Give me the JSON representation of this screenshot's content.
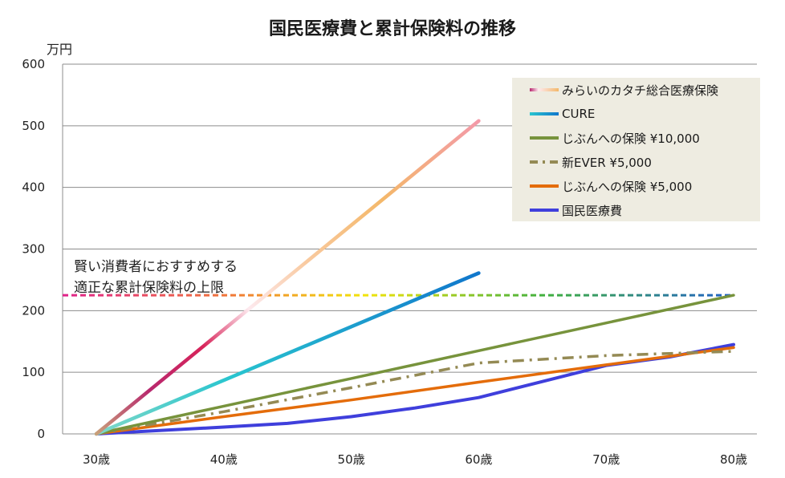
{
  "chart_data": {
    "type": "line",
    "title": "国民医療費と累計保険料の推移",
    "ylabel": "万円",
    "xlabel": "",
    "x": [
      30,
      40,
      50,
      60,
      70,
      80
    ],
    "x_tick_labels": [
      "30歳",
      "40歳",
      "50歳",
      "60歳",
      "70歳",
      "80歳"
    ],
    "ylim": [
      0,
      600
    ],
    "y_ticks": [
      "0",
      "100",
      "200",
      "300",
      "400",
      "500",
      "600"
    ],
    "grid": true,
    "legend_position": "top-right",
    "series": [
      {
        "name": "みらいのカタチ総合医療保険",
        "style": "gradient",
        "x": [
          30,
          60
        ],
        "values": [
          0,
          508
        ]
      },
      {
        "name": "CURE",
        "style": "gradient",
        "x": [
          30,
          60
        ],
        "values": [
          0,
          261
        ]
      },
      {
        "name": "じぶんへの保険 ¥10,000",
        "style": "solid",
        "color": "#77933c",
        "x": [
          30,
          40,
          50,
          60,
          70,
          80
        ],
        "values": [
          0,
          45,
          90,
          135,
          180,
          225
        ]
      },
      {
        "name": "新EVER ¥5,000",
        "style": "dashdot",
        "color": "#948a54",
        "x": [
          30,
          40,
          50,
          60,
          70,
          80
        ],
        "values": [
          0,
          36,
          75,
          115,
          127,
          134
        ]
      },
      {
        "name": "じぶんへの保険  ¥5,000",
        "style": "solid",
        "color": "#e46c0a",
        "x": [
          30,
          40,
          50,
          60,
          70,
          80
        ],
        "values": [
          0,
          28,
          55,
          84,
          112,
          140
        ]
      },
      {
        "name": "国民医療費",
        "style": "solid",
        "color": "#3f3fdc",
        "x": [
          30,
          40,
          45,
          50,
          55,
          60,
          65,
          70,
          75,
          80
        ],
        "values": [
          0,
          11,
          17,
          28,
          42,
          59,
          85,
          111,
          125,
          145
        ]
      }
    ],
    "reference_line": {
      "value": 225,
      "x": [
        30,
        80
      ],
      "style": "rainbow-dashed"
    },
    "annotation": [
      "賢い消費者におすすめする",
      "適正な累計保険料の上限"
    ]
  }
}
